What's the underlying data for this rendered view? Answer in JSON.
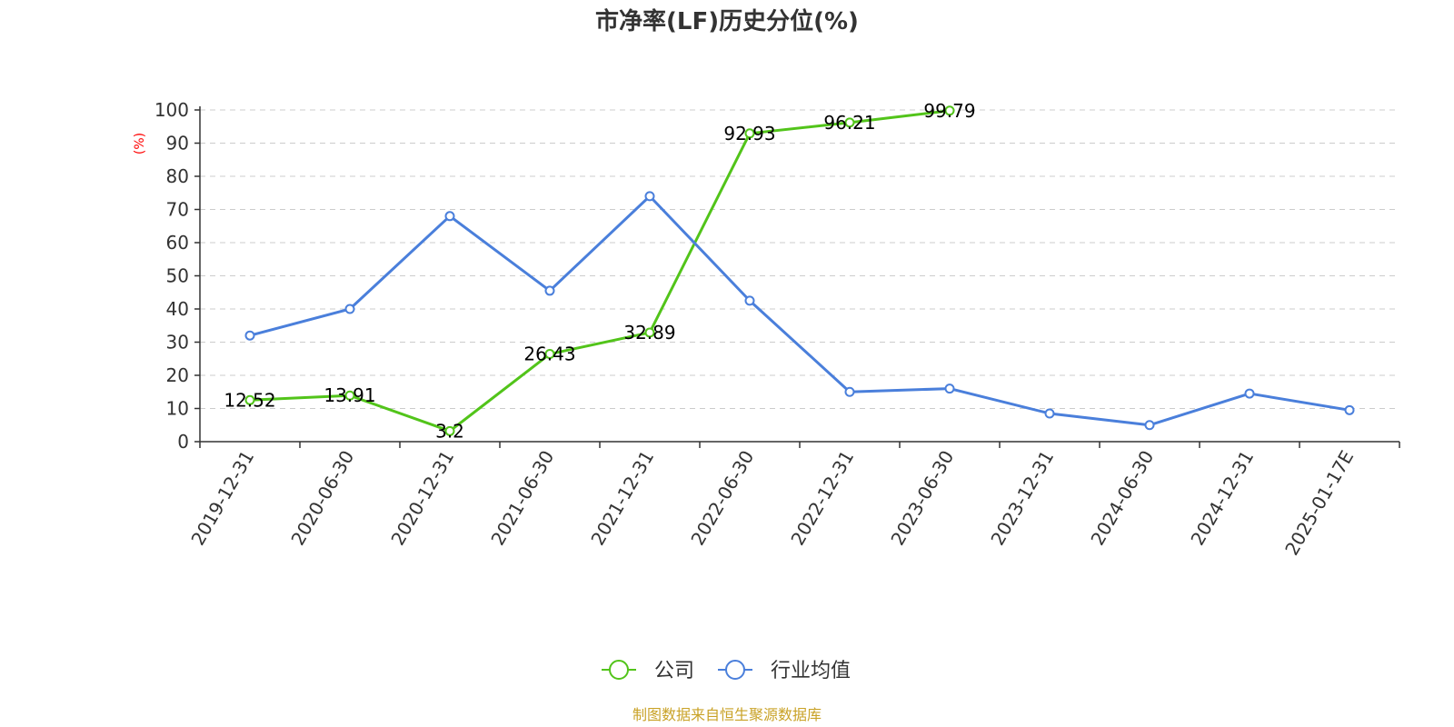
{
  "chart_data": {
    "type": "line",
    "title": "市净率(LF)历史分位(%)",
    "ylabel_unit": "(%)",
    "ylim": [
      0,
      100
    ],
    "yticks": [
      0,
      10,
      20,
      30,
      40,
      50,
      60,
      70,
      80,
      90,
      100
    ],
    "grid": true,
    "legend_position": "bottom",
    "categories": [
      "2019-12-31",
      "2020-06-30",
      "2020-12-31",
      "2021-06-30",
      "2021-12-31",
      "2022-06-30",
      "2022-12-31",
      "2023-06-30",
      "2023-12-31",
      "2024-06-30",
      "2024-12-31",
      "2025-01-17E"
    ],
    "series": [
      {
        "name": "公司",
        "color": "#52c41a",
        "values": [
          12.52,
          13.91,
          3.2,
          26.43,
          32.89,
          92.93,
          96.21,
          99.79,
          null,
          null,
          null,
          null
        ],
        "labels": [
          "12.52",
          "13.91",
          "3.2",
          "26.43",
          "32.89",
          "92.93",
          "96.21",
          "99.79",
          null,
          null,
          null,
          null
        ]
      },
      {
        "name": "行业均值",
        "color": "#4a7fdb",
        "values": [
          32,
          40,
          68,
          45.5,
          74,
          42.5,
          15,
          16,
          8.5,
          5,
          14.5,
          9.5
        ]
      }
    ],
    "source": "制图数据来自恒生聚源数据库"
  }
}
